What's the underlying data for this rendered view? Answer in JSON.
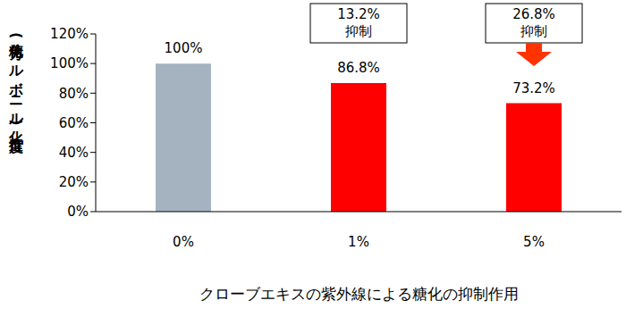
{
  "chart_data": {
    "type": "bar",
    "title": "クローブエキスの紫外線による糖化の抑制作用",
    "y_label": "糖化(カルボニル化)進行度",
    "categories": [
      "0%",
      "1%",
      "5%"
    ],
    "values": [
      100,
      86.8,
      73.2
    ],
    "value_labels": [
      "100%",
      "86.8%",
      "73.2%"
    ],
    "data_labels": true,
    "colors": [
      "#a5b3c1",
      "#ff0000",
      "#ff0000"
    ],
    "ylim": [
      0,
      120
    ],
    "yticks": [
      {
        "value": 0,
        "label": "0%"
      },
      {
        "value": 20,
        "label": "20%"
      },
      {
        "value": 40,
        "label": "40%"
      },
      {
        "value": 60,
        "label": "60%"
      },
      {
        "value": 80,
        "label": "80%"
      },
      {
        "value": 100,
        "label": "100%"
      },
      {
        "value": 120,
        "label": "120%"
      }
    ],
    "grid": false,
    "annotations": [
      {
        "category": "1%",
        "text": [
          "13.2%",
          "抑制"
        ]
      },
      {
        "category": "5%",
        "text": [
          "26.8%",
          "抑制"
        ]
      }
    ]
  }
}
